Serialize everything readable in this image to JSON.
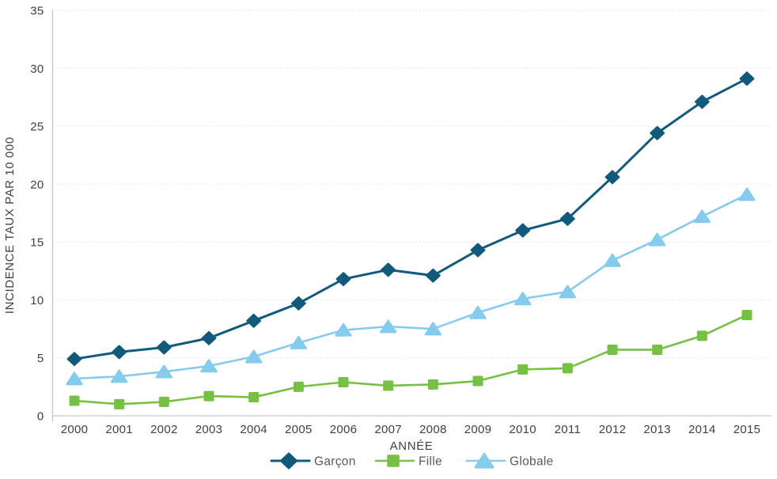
{
  "chart_data": {
    "type": "line",
    "title": "",
    "xlabel": "ANNÉE",
    "ylabel": "INCIDENCE TAUX PAR 10 000",
    "ylim": [
      0,
      35
    ],
    "yticks": [
      0,
      5,
      10,
      15,
      20,
      25,
      30,
      35
    ],
    "grid": "horizontal dotted gridlines",
    "legend_position": "bottom-center",
    "categories": [
      "2000",
      "2001",
      "2002",
      "2003",
      "2004",
      "2005",
      "2006",
      "2007",
      "2008",
      "2009",
      "2010",
      "2011",
      "2012",
      "2013",
      "2014",
      "2015"
    ],
    "series": [
      {
        "name": "Garçon",
        "slug": "garcon",
        "marker": "diamond",
        "color": "#115A7C",
        "values": [
          4.9,
          5.5,
          5.9,
          6.7,
          8.2,
          9.7,
          11.8,
          12.6,
          12.1,
          14.3,
          16.0,
          17.0,
          20.6,
          24.4,
          27.1,
          29.1
        ]
      },
      {
        "name": "Fille",
        "slug": "fille",
        "marker": "square",
        "color": "#76C043",
        "values": [
          1.3,
          1.0,
          1.2,
          1.7,
          1.6,
          2.5,
          2.9,
          2.6,
          2.7,
          3.0,
          4.0,
          4.1,
          5.7,
          5.7,
          6.9,
          8.7
        ]
      },
      {
        "name": "Globale",
        "slug": "globale",
        "marker": "triangle",
        "color": "#85CBEE",
        "values": [
          3.2,
          3.4,
          3.8,
          4.3,
          5.1,
          6.3,
          7.4,
          7.7,
          7.5,
          8.9,
          10.1,
          10.7,
          13.4,
          15.2,
          17.2,
          19.1
        ]
      }
    ],
    "colors": {
      "axis_text": "#414042",
      "legend_text": "#58595B",
      "grid_line": "#DEDEDE",
      "axis_line": "#C6C6C6",
      "background": "#FFFFFF"
    }
  }
}
